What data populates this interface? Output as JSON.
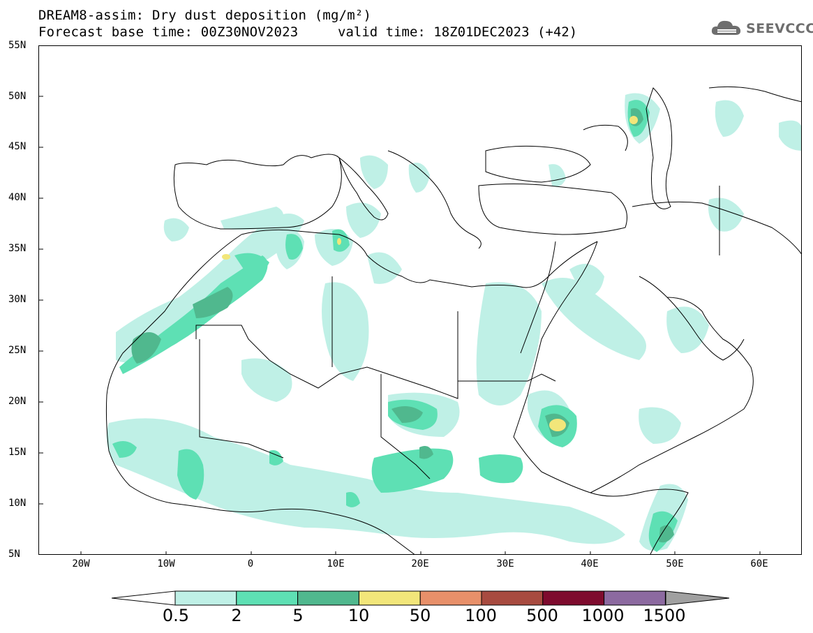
{
  "header": {
    "title": "DREAM8-assim: Dry dust deposition (mg/m²)",
    "base_time": "Forecast base time: 00Z30NOV2023",
    "valid_time": "valid time: 18Z01DEC2023 (+42)"
  },
  "logo": {
    "text": "SEEVCCC"
  },
  "axes": {
    "lat_labels": [
      "55N",
      "50N",
      "45N",
      "40N",
      "35N",
      "30N",
      "25N",
      "20N",
      "15N",
      "10N",
      "5N"
    ],
    "lon_labels": [
      "20W",
      "10W",
      "0",
      "10E",
      "20E",
      "30E",
      "40E",
      "50E",
      "60E"
    ]
  },
  "colorbar": {
    "labels": [
      "0.5",
      "2",
      "5",
      "10",
      "50",
      "100",
      "500",
      "1000",
      "1500"
    ],
    "colors": [
      "#bff0e6",
      "#5ee0b4",
      "#50b88e",
      "#f2e67a",
      "#e8906a",
      "#a84b40",
      "#7e0b2e",
      "#8c6aa0",
      "#a0a0a0"
    ]
  },
  "colors": {
    "level1": "#bff0e6",
    "level2": "#5ee0b4",
    "level3": "#50b88e",
    "level4": "#f2e67a",
    "coast": "#000000"
  }
}
